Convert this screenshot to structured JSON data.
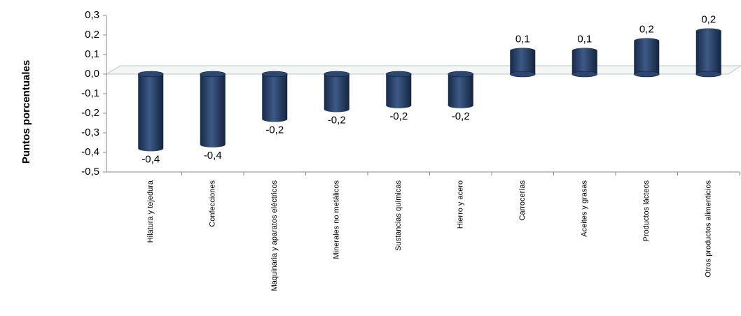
{
  "chart_data": {
    "type": "bar",
    "y_label": "Puntos porcentuales",
    "categories": [
      "Hilatura y tejedura",
      "Confecciones",
      "Maquinaria y aparatos eléctricos",
      "Minerales no metálicos",
      "Sustancias químicas",
      "Hierro y acero",
      "Carrocerías",
      "Aceites y grasas",
      "Productos lácteos",
      "Otros productos alimenticios"
    ],
    "values": [
      -0.38,
      -0.36,
      -0.23,
      -0.18,
      -0.16,
      -0.16,
      0.12,
      0.12,
      0.17,
      0.22
    ],
    "value_labels": [
      "-0,4",
      "-0,4",
      "-0,2",
      "-0,2",
      "-0,2",
      "-0,2",
      "0,1",
      "0,1",
      "0,2",
      "0,2"
    ],
    "color": "#1f3a5f",
    "ylim": [
      -0.5,
      0.3
    ],
    "yticks": [
      {
        "value": -0.5,
        "label": "-0,5"
      },
      {
        "value": -0.4,
        "label": "-0,4"
      },
      {
        "value": -0.3,
        "label": "-0,3"
      },
      {
        "value": -0.2,
        "label": "-0,2"
      },
      {
        "value": -0.1,
        "label": "-0,1"
      },
      {
        "value": 0,
        "label": "0,0"
      },
      {
        "value": 0.1,
        "label": "0,1"
      },
      {
        "value": 0.2,
        "label": "0,2"
      },
      {
        "value": 0.3,
        "label": "0,3"
      }
    ],
    "grid": false
  }
}
